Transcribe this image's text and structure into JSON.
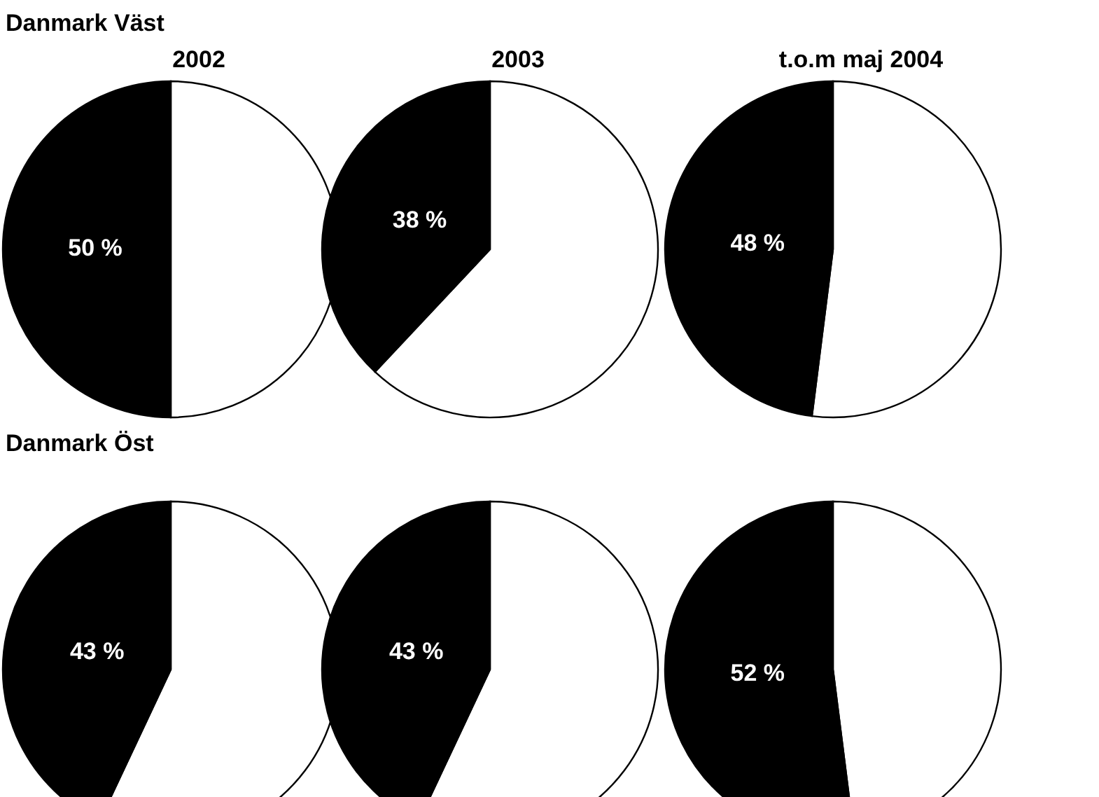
{
  "chart_data": [
    {
      "type": "pie",
      "title": "2002",
      "annotations": [
        "Danmark Väst"
      ],
      "categories": [
        null,
        null
      ],
      "values": [
        50,
        50
      ],
      "colors": [
        "#ffffff",
        "#000000"
      ],
      "value_labels": [
        null,
        "50 %"
      ]
    },
    {
      "type": "pie",
      "title": "2003",
      "categories": [
        null,
        null
      ],
      "values": [
        62,
        38
      ],
      "colors": [
        "#ffffff",
        "#000000"
      ],
      "value_labels": [
        null,
        "38 %"
      ]
    },
    {
      "type": "pie",
      "title": "t.o.m maj 2004",
      "categories": [
        null,
        null
      ],
      "values": [
        52,
        48
      ],
      "colors": [
        "#ffffff",
        "#000000"
      ],
      "value_labels": [
        null,
        "48 %"
      ]
    },
    {
      "type": "pie",
      "annotations": [
        "Danmark Öst"
      ],
      "categories": [
        null,
        null
      ],
      "values": [
        57,
        43
      ],
      "colors": [
        "#ffffff",
        "#000000"
      ],
      "value_labels": [
        null,
        "43 %"
      ]
    },
    {
      "type": "pie",
      "categories": [
        null,
        null
      ],
      "values": [
        57,
        43
      ],
      "colors": [
        "#ffffff",
        "#000000"
      ],
      "value_labels": [
        null,
        "43 %"
      ]
    },
    {
      "type": "pie",
      "categories": [
        null,
        null
      ],
      "values": [
        48,
        52
      ],
      "colors": [
        "#ffffff",
        "#000000"
      ],
      "value_labels": [
        null,
        "52 %"
      ]
    }
  ]
}
